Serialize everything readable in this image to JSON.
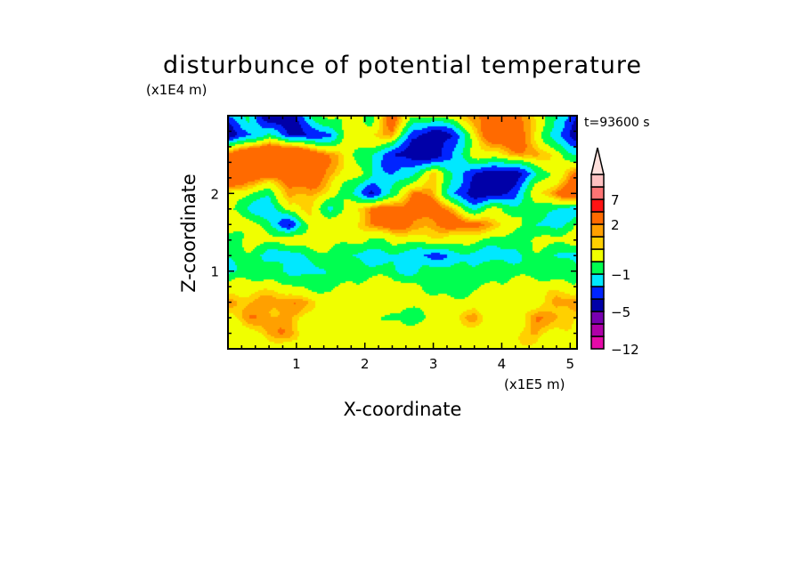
{
  "chart_data": {
    "type": "heatmap",
    "title": "disturbunce of potential temperature",
    "xlabel": "X-coordinate",
    "ylabel": "Z-coordinate",
    "x_unit_label": "(x1E5 m)",
    "y_unit_label": "(x1E4 m)",
    "time_label": "t=93600 s",
    "xlim": [
      0,
      5.1
    ],
    "ylim": [
      0,
      3.0
    ],
    "x_ticks": [
      "1",
      "2",
      "3",
      "4",
      "5"
    ],
    "x_tick_values": [
      1,
      2,
      3,
      4,
      5
    ],
    "y_ticks": [
      "1",
      "2"
    ],
    "y_tick_values": [
      1,
      2
    ],
    "grid": false,
    "colorbar": {
      "boundaries": [
        -12,
        -9,
        -7,
        -5,
        -3,
        -2,
        -1,
        0,
        1,
        1.5,
        2,
        5,
        7,
        9,
        11
      ],
      "colors": [
        "#e60aa8",
        "#b000a8",
        "#7800b0",
        "#0000a8",
        "#0024ff",
        "#00e8ff",
        "#00ff50",
        "#f0ff00",
        "#ffd000",
        "#ffa000",
        "#ff6a00",
        "#ff1414",
        "#ff7474",
        "#ffc0c0"
      ],
      "extend_color": "#ffe0dc",
      "labels": [
        "7",
        "2",
        "-1",
        "-5",
        "-12"
      ],
      "label_values": [
        7,
        2,
        -1,
        -5,
        -12
      ]
    },
    "grid_x": [
      0,
      0.3,
      0.6,
      0.9,
      1.2,
      1.5,
      1.8,
      2.1,
      2.4,
      2.7,
      3.0,
      3.3,
      3.6,
      3.9,
      4.2,
      4.5,
      4.8,
      5.1
    ],
    "grid_z": [
      3.0,
      2.75,
      2.5,
      2.25,
      2.0,
      1.8,
      1.6,
      1.4,
      1.2,
      1.0,
      0.8,
      0.6,
      0.4,
      0.2,
      0.0
    ],
    "values": [
      [
        -2,
        -1,
        -4,
        -4,
        -1,
        0.5,
        0.5,
        -0.5,
        2.5,
        0.5,
        0.5,
        0.5,
        2,
        3.5,
        2.5,
        0.5,
        -0.5,
        -3
      ],
      [
        -4,
        -2,
        -1,
        -3,
        -3,
        -2,
        0.5,
        1,
        2,
        -3,
        -4,
        -3,
        1,
        3,
        3,
        1,
        -2,
        -4
      ],
      [
        2,
        4,
        5,
        5,
        3,
        1.7,
        0.5,
        -1,
        -3,
        -4,
        -4,
        -2,
        0.5,
        1,
        1.7,
        1.7,
        0.5,
        -1
      ],
      [
        5,
        3,
        3,
        2.5,
        3,
        1.7,
        0.5,
        -1,
        -2,
        -1,
        1,
        -1,
        -3,
        -4,
        -4,
        -1,
        0.5,
        2
      ],
      [
        1,
        0,
        -1,
        2,
        1.7,
        0.5,
        -1,
        -3,
        -1,
        2,
        1.7,
        -2,
        -4,
        -4,
        -2,
        0.5,
        2,
        4
      ],
      [
        0,
        -1,
        -2,
        0.5,
        1,
        -1,
        0.5,
        2,
        3,
        2.5,
        3,
        1,
        -1,
        0.5,
        -1,
        0,
        -1,
        -2
      ],
      [
        0.5,
        0.5,
        -1,
        -3,
        0.5,
        0.5,
        1,
        2,
        3,
        1.7,
        2,
        3,
        2,
        1.7,
        0.5,
        -1,
        -2,
        0.5
      ],
      [
        -0.5,
        0.5,
        0.5,
        0.5,
        0.5,
        0.5,
        0.5,
        -0.5,
        0.5,
        0.5,
        0.5,
        0.5,
        0.5,
        -0.5,
        -1,
        0.5,
        0.5,
        0.5
      ],
      [
        -0.5,
        -0.5,
        -1.5,
        -1.5,
        -0.5,
        -0.5,
        -1,
        -1.5,
        -1.5,
        -1.5,
        -2.5,
        -1.5,
        -1.5,
        -1.5,
        -1,
        -0.5,
        -1,
        -1.5
      ],
      [
        -1.5,
        -0.5,
        -0.5,
        -1.5,
        -1.5,
        -0.5,
        -0.5,
        -0.5,
        -0.5,
        -1.5,
        -0.5,
        -0.5,
        -0.5,
        -0.5,
        -0.5,
        -0.5,
        -0.5,
        -0.5
      ],
      [
        0.5,
        0.5,
        0.5,
        0.5,
        -0.5,
        -0.5,
        0.5,
        0.5,
        0.5,
        0.5,
        -0.5,
        -0.5,
        -0.5,
        0.5,
        0.5,
        0.5,
        0.5,
        0.5
      ],
      [
        1.7,
        1.7,
        1.8,
        1.7,
        1.7,
        0.5,
        0.5,
        0.5,
        0.5,
        0.5,
        0.5,
        0.5,
        0.5,
        0.5,
        0.5,
        0.5,
        1.7,
        1.7
      ],
      [
        0.5,
        1.7,
        1.8,
        1.7,
        0.5,
        0.5,
        0.5,
        0.5,
        -0.5,
        -0.5,
        0.5,
        0.5,
        1.7,
        0.5,
        0.5,
        1.7,
        1.8,
        1
      ],
      [
        0.5,
        0.5,
        1.7,
        1.7,
        0.5,
        0.5,
        0.5,
        0.5,
        0.5,
        0.5,
        0.5,
        0.5,
        0.5,
        0.5,
        1,
        1.7,
        0.5,
        0.5
      ],
      [
        0.5,
        0.5,
        0.5,
        0.5,
        0.5,
        0.5,
        0.5,
        0.5,
        0.5,
        0.5,
        0.5,
        0.5,
        0.5,
        0.5,
        0.5,
        0.5,
        0.5,
        0.5
      ]
    ]
  }
}
